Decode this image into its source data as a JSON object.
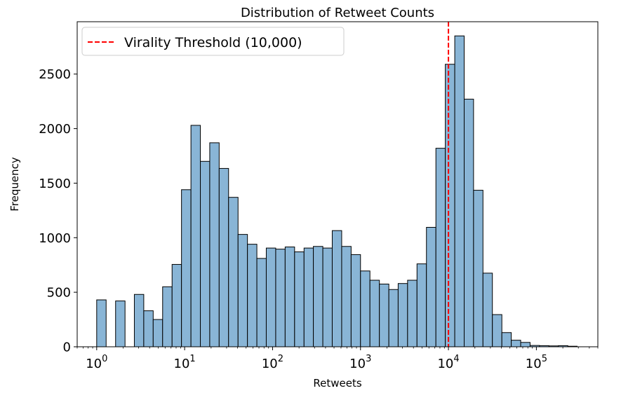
{
  "chart_data": {
    "type": "bar",
    "title": "Distribution of Retweet Counts",
    "xlabel": "Retweets",
    "ylabel": "Frequency",
    "x_scale": "log",
    "xlim": [
      0.6,
      500000
    ],
    "ylim": [
      0,
      2980
    ],
    "bar_color": "#89b5d6",
    "edge_color": "#000000",
    "bin_edges": [
      1,
      1.28,
      1.64,
      2.1,
      2.68,
      3.43,
      4.39,
      5.62,
      7.2,
      9.21,
      11.8,
      15.1,
      19.3,
      24.7,
      31.6,
      40.5,
      51.8,
      66.3,
      84.8,
      108.6,
      139,
      178,
      228,
      291,
      373,
      477,
      611,
      782,
      1000,
      1280,
      1640,
      2100,
      2680,
      3430,
      4390,
      5620,
      7200,
      9210,
      11800,
      15100,
      19300,
      24700,
      31600,
      40500,
      51800,
      66300,
      84800,
      108600,
      139000,
      178000,
      228000,
      291000
    ],
    "counts": [
      430,
      0,
      420,
      0,
      480,
      330,
      250,
      550,
      755,
      1440,
      2030,
      1700,
      1870,
      1635,
      1370,
      1030,
      940,
      810,
      905,
      895,
      915,
      870,
      905,
      920,
      905,
      1065,
      920,
      845,
      695,
      610,
      575,
      525,
      580,
      610,
      760,
      1095,
      1820,
      2590,
      2850,
      2270,
      1435,
      675,
      295,
      130,
      60,
      40,
      12,
      10,
      8,
      10,
      5
    ],
    "x_ticks": [
      {
        "value": 1,
        "base": "10",
        "exp": "0"
      },
      {
        "value": 10,
        "base": "10",
        "exp": "1"
      },
      {
        "value": 100,
        "base": "10",
        "exp": "2"
      },
      {
        "value": 1000,
        "base": "10",
        "exp": "3"
      },
      {
        "value": 10000,
        "base": "10",
        "exp": "4"
      },
      {
        "value": 100000,
        "base": "10",
        "exp": "5"
      }
    ],
    "y_ticks": [
      0,
      500,
      1000,
      1500,
      2000,
      2500
    ],
    "y_tick_labels": [
      "0",
      "500",
      "1000",
      "1500",
      "2000",
      "2500"
    ],
    "threshold": {
      "value": 10000,
      "color": "#ff0000",
      "label": "Virality Threshold (10,000)"
    },
    "legend_position": "upper left",
    "grid": false
  }
}
